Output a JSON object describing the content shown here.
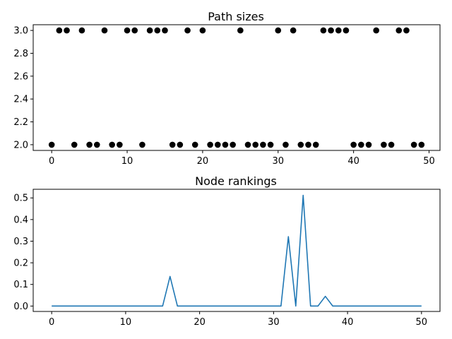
{
  "chart_data": [
    {
      "type": "scatter",
      "title": "Path sizes",
      "xlabel": "",
      "ylabel": "",
      "xlim": [
        -2.45,
        51.45
      ],
      "ylim": [
        1.95,
        3.05
      ],
      "xticks": [
        0,
        10,
        20,
        30,
        40,
        50
      ],
      "xtick_labels": [
        "0",
        "10",
        "20",
        "30",
        "40",
        "50"
      ],
      "yticks": [
        2.0,
        2.2,
        2.4,
        2.6,
        2.8,
        3.0
      ],
      "ytick_labels": [
        "2.0",
        "2.2",
        "2.4",
        "2.6",
        "2.8",
        "3.0"
      ],
      "grid": false,
      "marker_color": "#000000",
      "x": [
        0,
        1,
        2,
        3,
        4,
        5,
        6,
        7,
        8,
        9,
        10,
        11,
        12,
        13,
        14,
        15,
        16,
        17,
        18,
        19,
        20,
        21,
        22,
        23,
        24,
        25,
        26,
        27,
        28,
        29,
        30,
        31,
        32,
        33,
        34,
        35,
        36,
        37,
        38,
        39,
        40,
        41,
        42,
        43,
        44,
        45,
        46,
        47,
        48,
        49
      ],
      "y": [
        2,
        3,
        3,
        2,
        3,
        2,
        2,
        3,
        2,
        2,
        3,
        3,
        2,
        3,
        3,
        3,
        2,
        2,
        3,
        2,
        3,
        2,
        2,
        2,
        2,
        3,
        2,
        2,
        2,
        2,
        3,
        2,
        3,
        2,
        2,
        2,
        3,
        3,
        3,
        3,
        2,
        2,
        2,
        3,
        2,
        2,
        3,
        3,
        2,
        2
      ]
    },
    {
      "type": "line",
      "title": "Node rankings",
      "xlabel": "",
      "ylabel": "",
      "xlim": [
        -2.5,
        52.5
      ],
      "ylim": [
        -0.025,
        0.54
      ],
      "xticks": [
        0,
        10,
        20,
        30,
        40,
        50
      ],
      "xtick_labels": [
        "0",
        "10",
        "20",
        "30",
        "40",
        "50"
      ],
      "yticks": [
        0.0,
        0.1,
        0.2,
        0.3,
        0.4,
        0.5
      ],
      "ytick_labels": [
        "0.0",
        "0.1",
        "0.2",
        "0.3",
        "0.4",
        "0.5"
      ],
      "grid": false,
      "line_color": "#1f77b4",
      "x": [
        0,
        1,
        2,
        3,
        4,
        5,
        6,
        7,
        8,
        9,
        10,
        11,
        12,
        13,
        14,
        15,
        16,
        17,
        18,
        19,
        20,
        21,
        22,
        23,
        24,
        25,
        26,
        27,
        28,
        29,
        30,
        31,
        32,
        33,
        34,
        35,
        36,
        37,
        38,
        39,
        40,
        41,
        42,
        43,
        44,
        45,
        46,
        47,
        48,
        49,
        50
      ],
      "y": [
        0,
        0,
        0,
        0,
        0,
        0,
        0,
        0,
        0,
        0,
        0,
        0,
        0,
        0,
        0,
        0,
        0.137,
        0,
        0,
        0,
        0,
        0,
        0,
        0,
        0,
        0,
        0,
        0,
        0,
        0,
        0,
        0,
        0.321,
        0,
        0.512,
        0,
        0,
        0.045,
        0,
        0,
        0,
        0,
        0,
        0,
        0,
        0,
        0,
        0,
        0,
        0,
        0
      ]
    }
  ]
}
